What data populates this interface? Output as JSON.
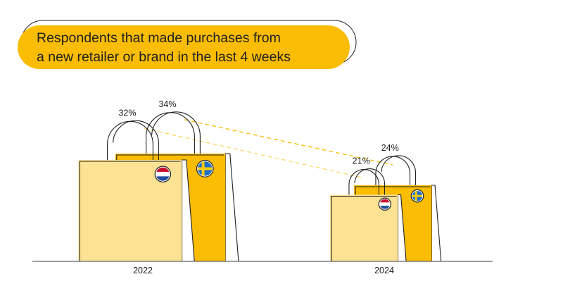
{
  "chart_data": {
    "type": "bar",
    "title": [
      "Respondents that made purchases from",
      "a new retailer or brand in the last 4 weeks"
    ],
    "categories": [
      "2022",
      "2024"
    ],
    "series": [
      {
        "values": [
          32,
          21
        ],
        "labels": [
          "32%",
          "21%"
        ],
        "flag": "netherlands",
        "color": "#FDE293"
      },
      {
        "values": [
          34,
          24
        ],
        "labels": [
          "34%",
          "24%"
        ],
        "flag": "sweden",
        "color": "#FBBC04"
      }
    ],
    "unit": "%",
    "ylim": [
      0,
      40
    ],
    "colors": {
      "title_pill": "#FBBC04",
      "bag_light": "#FDE293",
      "bag_dark": "#FBBC04",
      "trend_line": "#FBBC04",
      "axis": "#5f6368",
      "outline": "#202124"
    }
  }
}
